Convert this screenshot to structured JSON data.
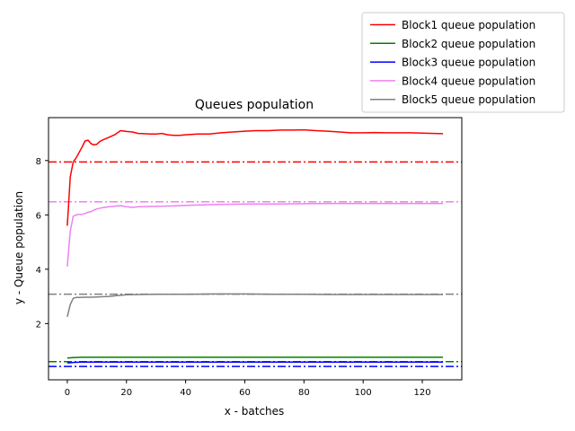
{
  "chart_data": {
    "type": "line",
    "title": "Queues population",
    "xlabel": "x - batches",
    "ylabel": "y - Queue population",
    "xlim": [
      -6.35,
      133.35
    ],
    "ylim": [
      -0.07,
      9.58
    ],
    "xticks": [
      0,
      20,
      40,
      60,
      80,
      100,
      120
    ],
    "yticks": [
      2,
      4,
      6,
      8
    ],
    "grid": false,
    "legend_placement": "upper-right, outside plot area",
    "series": [
      {
        "name": "Block1 queue population",
        "color": "#ff0000",
        "x": [
          0,
          1,
          2,
          3,
          4,
          5,
          6,
          7,
          8,
          9,
          10,
          11,
          12,
          14,
          16,
          18,
          20,
          22,
          24,
          26,
          28,
          30,
          32,
          34,
          36,
          38,
          40,
          44,
          48,
          52,
          56,
          60,
          64,
          68,
          72,
          76,
          80,
          84,
          88,
          92,
          96,
          100,
          104,
          108,
          112,
          116,
          120,
          124,
          127
        ],
        "y": [
          5.6,
          7.4,
          7.95,
          8.1,
          8.3,
          8.5,
          8.72,
          8.75,
          8.62,
          8.58,
          8.6,
          8.7,
          8.76,
          8.85,
          8.95,
          9.1,
          9.07,
          9.05,
          9.0,
          8.99,
          8.98,
          8.98,
          9.0,
          8.95,
          8.93,
          8.93,
          8.95,
          8.98,
          8.98,
          9.02,
          9.05,
          9.08,
          9.1,
          9.1,
          9.12,
          9.12,
          9.13,
          9.1,
          9.08,
          9.05,
          9.02,
          9.02,
          9.03,
          9.02,
          9.02,
          9.02,
          9.01,
          9.0,
          8.99
        ]
      },
      {
        "name": "Block2 queue population",
        "color": "#008000",
        "x": [
          0,
          2,
          5,
          10,
          20,
          40,
          60,
          80,
          100,
          120,
          127
        ],
        "y": [
          0.73,
          0.75,
          0.76,
          0.76,
          0.76,
          0.76,
          0.76,
          0.76,
          0.76,
          0.76,
          0.76
        ]
      },
      {
        "name": "Block3 queue population",
        "color": "#0000ff",
        "x": [
          0,
          2,
          5,
          10,
          20,
          40,
          60,
          80,
          100,
          120,
          127
        ],
        "y": [
          0.55,
          0.57,
          0.58,
          0.58,
          0.58,
          0.58,
          0.58,
          0.58,
          0.58,
          0.58,
          0.58
        ]
      },
      {
        "name": "Block4 queue population",
        "color": "#ee82ee",
        "x": [
          0,
          1,
          2,
          3,
          4,
          5,
          6,
          7,
          8,
          9,
          10,
          12,
          14,
          16,
          18,
          20,
          22,
          24,
          28,
          32,
          36,
          40,
          50,
          60,
          70,
          80,
          90,
          100,
          110,
          120,
          127
        ],
        "y": [
          4.1,
          5.4,
          5.95,
          6.0,
          6.02,
          6.02,
          6.05,
          6.1,
          6.12,
          6.18,
          6.22,
          6.27,
          6.3,
          6.32,
          6.34,
          6.3,
          6.28,
          6.3,
          6.31,
          6.32,
          6.33,
          6.35,
          6.38,
          6.4,
          6.4,
          6.41,
          6.42,
          6.42,
          6.42,
          6.42,
          6.42
        ]
      },
      {
        "name": "Block5 queue population",
        "color": "#808080",
        "x": [
          0,
          1,
          2,
          3,
          4,
          6,
          8,
          10,
          14,
          18,
          20,
          24,
          30,
          40,
          50,
          60,
          70,
          80,
          90,
          100,
          110,
          120,
          127
        ],
        "y": [
          2.25,
          2.7,
          2.93,
          2.96,
          2.96,
          2.97,
          2.97,
          2.98,
          3.0,
          3.04,
          3.06,
          3.07,
          3.08,
          3.08,
          3.09,
          3.09,
          3.08,
          3.08,
          3.07,
          3.07,
          3.07,
          3.07,
          3.07
        ]
      }
    ],
    "reference_lines": [
      {
        "series": "Block1 queue population",
        "y": 7.95,
        "color": "#ff0000",
        "style": "dash-dot"
      },
      {
        "series": "Block2 queue population",
        "y": 0.6,
        "color": "#008000",
        "style": "dash-dot"
      },
      {
        "series": "Block3 queue population",
        "y": 0.42,
        "color": "#0000ff",
        "style": "dash-dot"
      },
      {
        "series": "Block4 queue population",
        "y": 6.48,
        "color": "#ee82ee",
        "style": "dash-dot"
      },
      {
        "series": "Block5 queue population",
        "y": 3.08,
        "color": "#808080",
        "style": "dash-dot"
      }
    ]
  }
}
